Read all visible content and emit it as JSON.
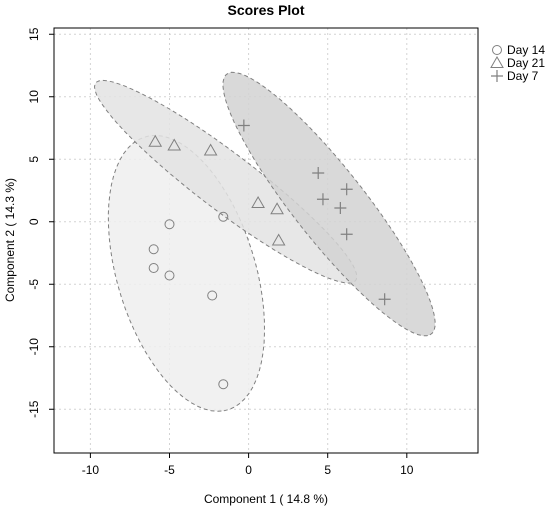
{
  "chart_data": {
    "type": "scatter",
    "title": "Scores Plot",
    "xlabel": "Component 1 ( 14.8 %)",
    "ylabel": "Component 2 ( 14.3 %)",
    "xlim": [
      -12.3,
      14.5
    ],
    "ylim": [
      -18.5,
      15.5
    ],
    "xticks": [
      -10,
      -5,
      0,
      5,
      10
    ],
    "yticks": [
      -15,
      -10,
      -5,
      0,
      5,
      10,
      15
    ],
    "grid": true,
    "legend_position": "top-right",
    "series": [
      {
        "name": "Day 14",
        "marker": "circle",
        "ellipse_fill": "#efefef",
        "points": [
          {
            "x": -5.0,
            "y": -0.2
          },
          {
            "x": -6.0,
            "y": -2.2
          },
          {
            "x": -6.0,
            "y": -3.7
          },
          {
            "x": -5.0,
            "y": -4.3
          },
          {
            "x": -1.6,
            "y": 0.4
          },
          {
            "x": -2.3,
            "y": -5.9
          },
          {
            "x": -1.6,
            "y": -13.0
          }
        ]
      },
      {
        "name": "Day 21",
        "marker": "triangle",
        "ellipse_fill": "#e3e3e3",
        "points": [
          {
            "x": -5.9,
            "y": 6.4
          },
          {
            "x": -4.7,
            "y": 6.1
          },
          {
            "x": -2.4,
            "y": 5.7
          },
          {
            "x": 0.6,
            "y": 1.5
          },
          {
            "x": 1.8,
            "y": 1.0
          },
          {
            "x": 1.9,
            "y": -1.5
          }
        ]
      },
      {
        "name": "Day 7",
        "marker": "plus",
        "ellipse_fill": "#d2d2d2",
        "points": [
          {
            "x": -0.3,
            "y": 7.7
          },
          {
            "x": 4.4,
            "y": 3.9
          },
          {
            "x": 4.7,
            "y": 1.8
          },
          {
            "x": 5.8,
            "y": 1.1
          },
          {
            "x": 6.2,
            "y": 2.6
          },
          {
            "x": 6.2,
            "y": -1.0
          },
          {
            "x": 8.6,
            "y": -6.2
          }
        ]
      }
    ]
  }
}
